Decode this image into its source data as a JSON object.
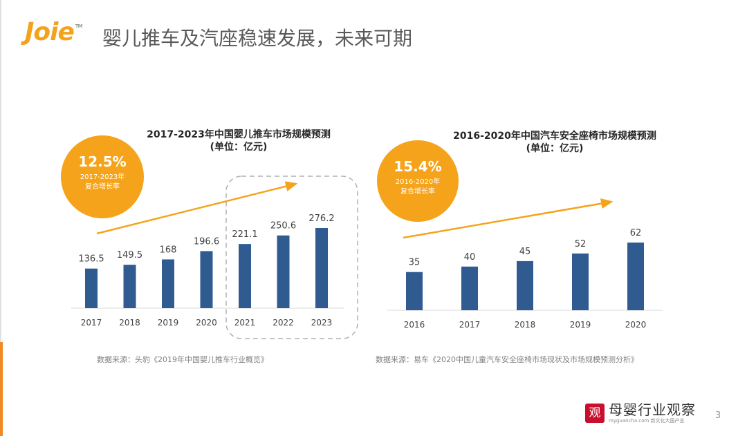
{
  "header": {
    "logo_text": "Joie",
    "logo_tm": "TM",
    "title": "婴儿推车及汽座稳速发展，未来可期",
    "brand_color": "#f4a21b"
  },
  "colors": {
    "bar": "#2f5b91",
    "accent": "#f5a31a",
    "text": "#404040"
  },
  "chart_data": [
    {
      "type": "bar",
      "title": "2017-2023年中国婴儿推车市场规模预测",
      "subtitle": "(单位：亿元)",
      "categories": [
        "2017",
        "2018",
        "2019",
        "2020",
        "2021",
        "2022",
        "2023"
      ],
      "values": [
        136.5,
        149.5,
        168,
        196.6,
        221.1,
        250.6,
        276.2
      ],
      "value_labels": [
        "136.5",
        "149.5",
        "168",
        "196.6",
        "221.1",
        "250.6",
        "276.2"
      ],
      "forecast_categories": [
        "2021",
        "2022",
        "2023"
      ],
      "badge": {
        "value": "12.5%",
        "line1": "2017-2023年",
        "line2": "复合增长率"
      },
      "source": "数据来源：头豹《2019年中国婴儿推车行业概览》"
    },
    {
      "type": "bar",
      "title": "2016-2020年中国汽车安全座椅市场规模预测",
      "subtitle": "(单位：亿元)",
      "categories": [
        "2016",
        "2017",
        "2018",
        "2019",
        "2020"
      ],
      "values": [
        35,
        40,
        45,
        52,
        62
      ],
      "value_labels": [
        "35",
        "40",
        "45",
        "52",
        "62"
      ],
      "badge": {
        "value": "15.4%",
        "line1": "2016-2020年",
        "line2": "复合增长率"
      },
      "source": "数据来源：易车《2020中国儿童汽车安全座椅市场现状及市场规模预测分析》"
    }
  ],
  "footer": {
    "seal": "观",
    "brand_cn": "母婴行业观察",
    "brand_en": "myguancha.com 新文化大国产业",
    "page_number": "3"
  }
}
